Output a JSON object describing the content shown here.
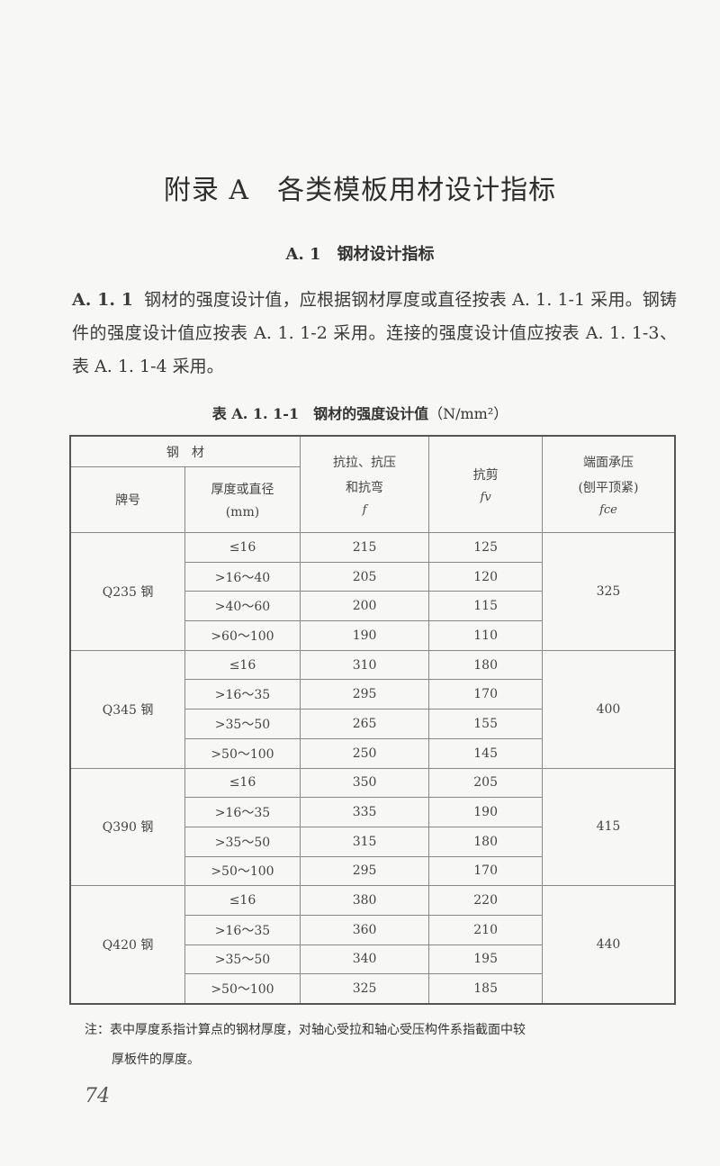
{
  "appendix_title": "附录 A　各类模板用材设计指标",
  "section_title": "A. 1　钢材设计指标",
  "paragraph": {
    "number": "A. 1. 1",
    "text": "钢材的强度设计值，应根据钢材厚度或直径按表 A. 1. 1-1 采用。钢铸件的强度设计值应按表 A. 1. 1-2 采用。连接的强度设计值应按表 A. 1. 1-3、表 A. 1. 1-4 采用。"
  },
  "table": {
    "caption_bold": "表 A. 1. 1-1　钢材的强度设计值",
    "caption_unit": "（N/mm²）",
    "headers": {
      "steel": "钢　材",
      "grade": "牌号",
      "thickness": "厚度或直径",
      "thickness_unit": "(mm)",
      "tension": "抗拉、抗压",
      "tension2": "和抗弯",
      "tension_sym": "f",
      "shear": "抗剪",
      "shear_sym": "fv",
      "bearing": "端面承压",
      "bearing2": "(刨平顶紧)",
      "bearing_sym": "fce"
    },
    "groups": [
      {
        "grade": "Q235 钢",
        "bearing": "325",
        "rows": [
          {
            "thickness": "≤16",
            "f": "215",
            "fv": "125"
          },
          {
            "thickness": ">16～40",
            "f": "205",
            "fv": "120"
          },
          {
            "thickness": ">40～60",
            "f": "200",
            "fv": "115"
          },
          {
            "thickness": ">60～100",
            "f": "190",
            "fv": "110"
          }
        ]
      },
      {
        "grade": "Q345 钢",
        "bearing": "400",
        "rows": [
          {
            "thickness": "≤16",
            "f": "310",
            "fv": "180"
          },
          {
            "thickness": ">16～35",
            "f": "295",
            "fv": "170"
          },
          {
            "thickness": ">35～50",
            "f": "265",
            "fv": "155"
          },
          {
            "thickness": ">50～100",
            "f": "250",
            "fv": "145"
          }
        ]
      },
      {
        "grade": "Q390 钢",
        "bearing": "415",
        "rows": [
          {
            "thickness": "≤16",
            "f": "350",
            "fv": "205"
          },
          {
            "thickness": ">16～35",
            "f": "335",
            "fv": "190"
          },
          {
            "thickness": ">35～50",
            "f": "315",
            "fv": "180"
          },
          {
            "thickness": ">50～100",
            "f": "295",
            "fv": "170"
          }
        ]
      },
      {
        "grade": "Q420 钢",
        "bearing": "440",
        "rows": [
          {
            "thickness": "≤16",
            "f": "380",
            "fv": "220"
          },
          {
            "thickness": ">16～35",
            "f": "360",
            "fv": "210"
          },
          {
            "thickness": ">35～50",
            "f": "340",
            "fv": "195"
          },
          {
            "thickness": ">50～100",
            "f": "325",
            "fv": "185"
          }
        ]
      }
    ]
  },
  "note": {
    "line1": "注：表中厚度系指计算点的钢材厚度，对轴心受拉和轴心受压构件系指截面中较",
    "line2": "厚板件的厚度。"
  },
  "page_number": "74"
}
